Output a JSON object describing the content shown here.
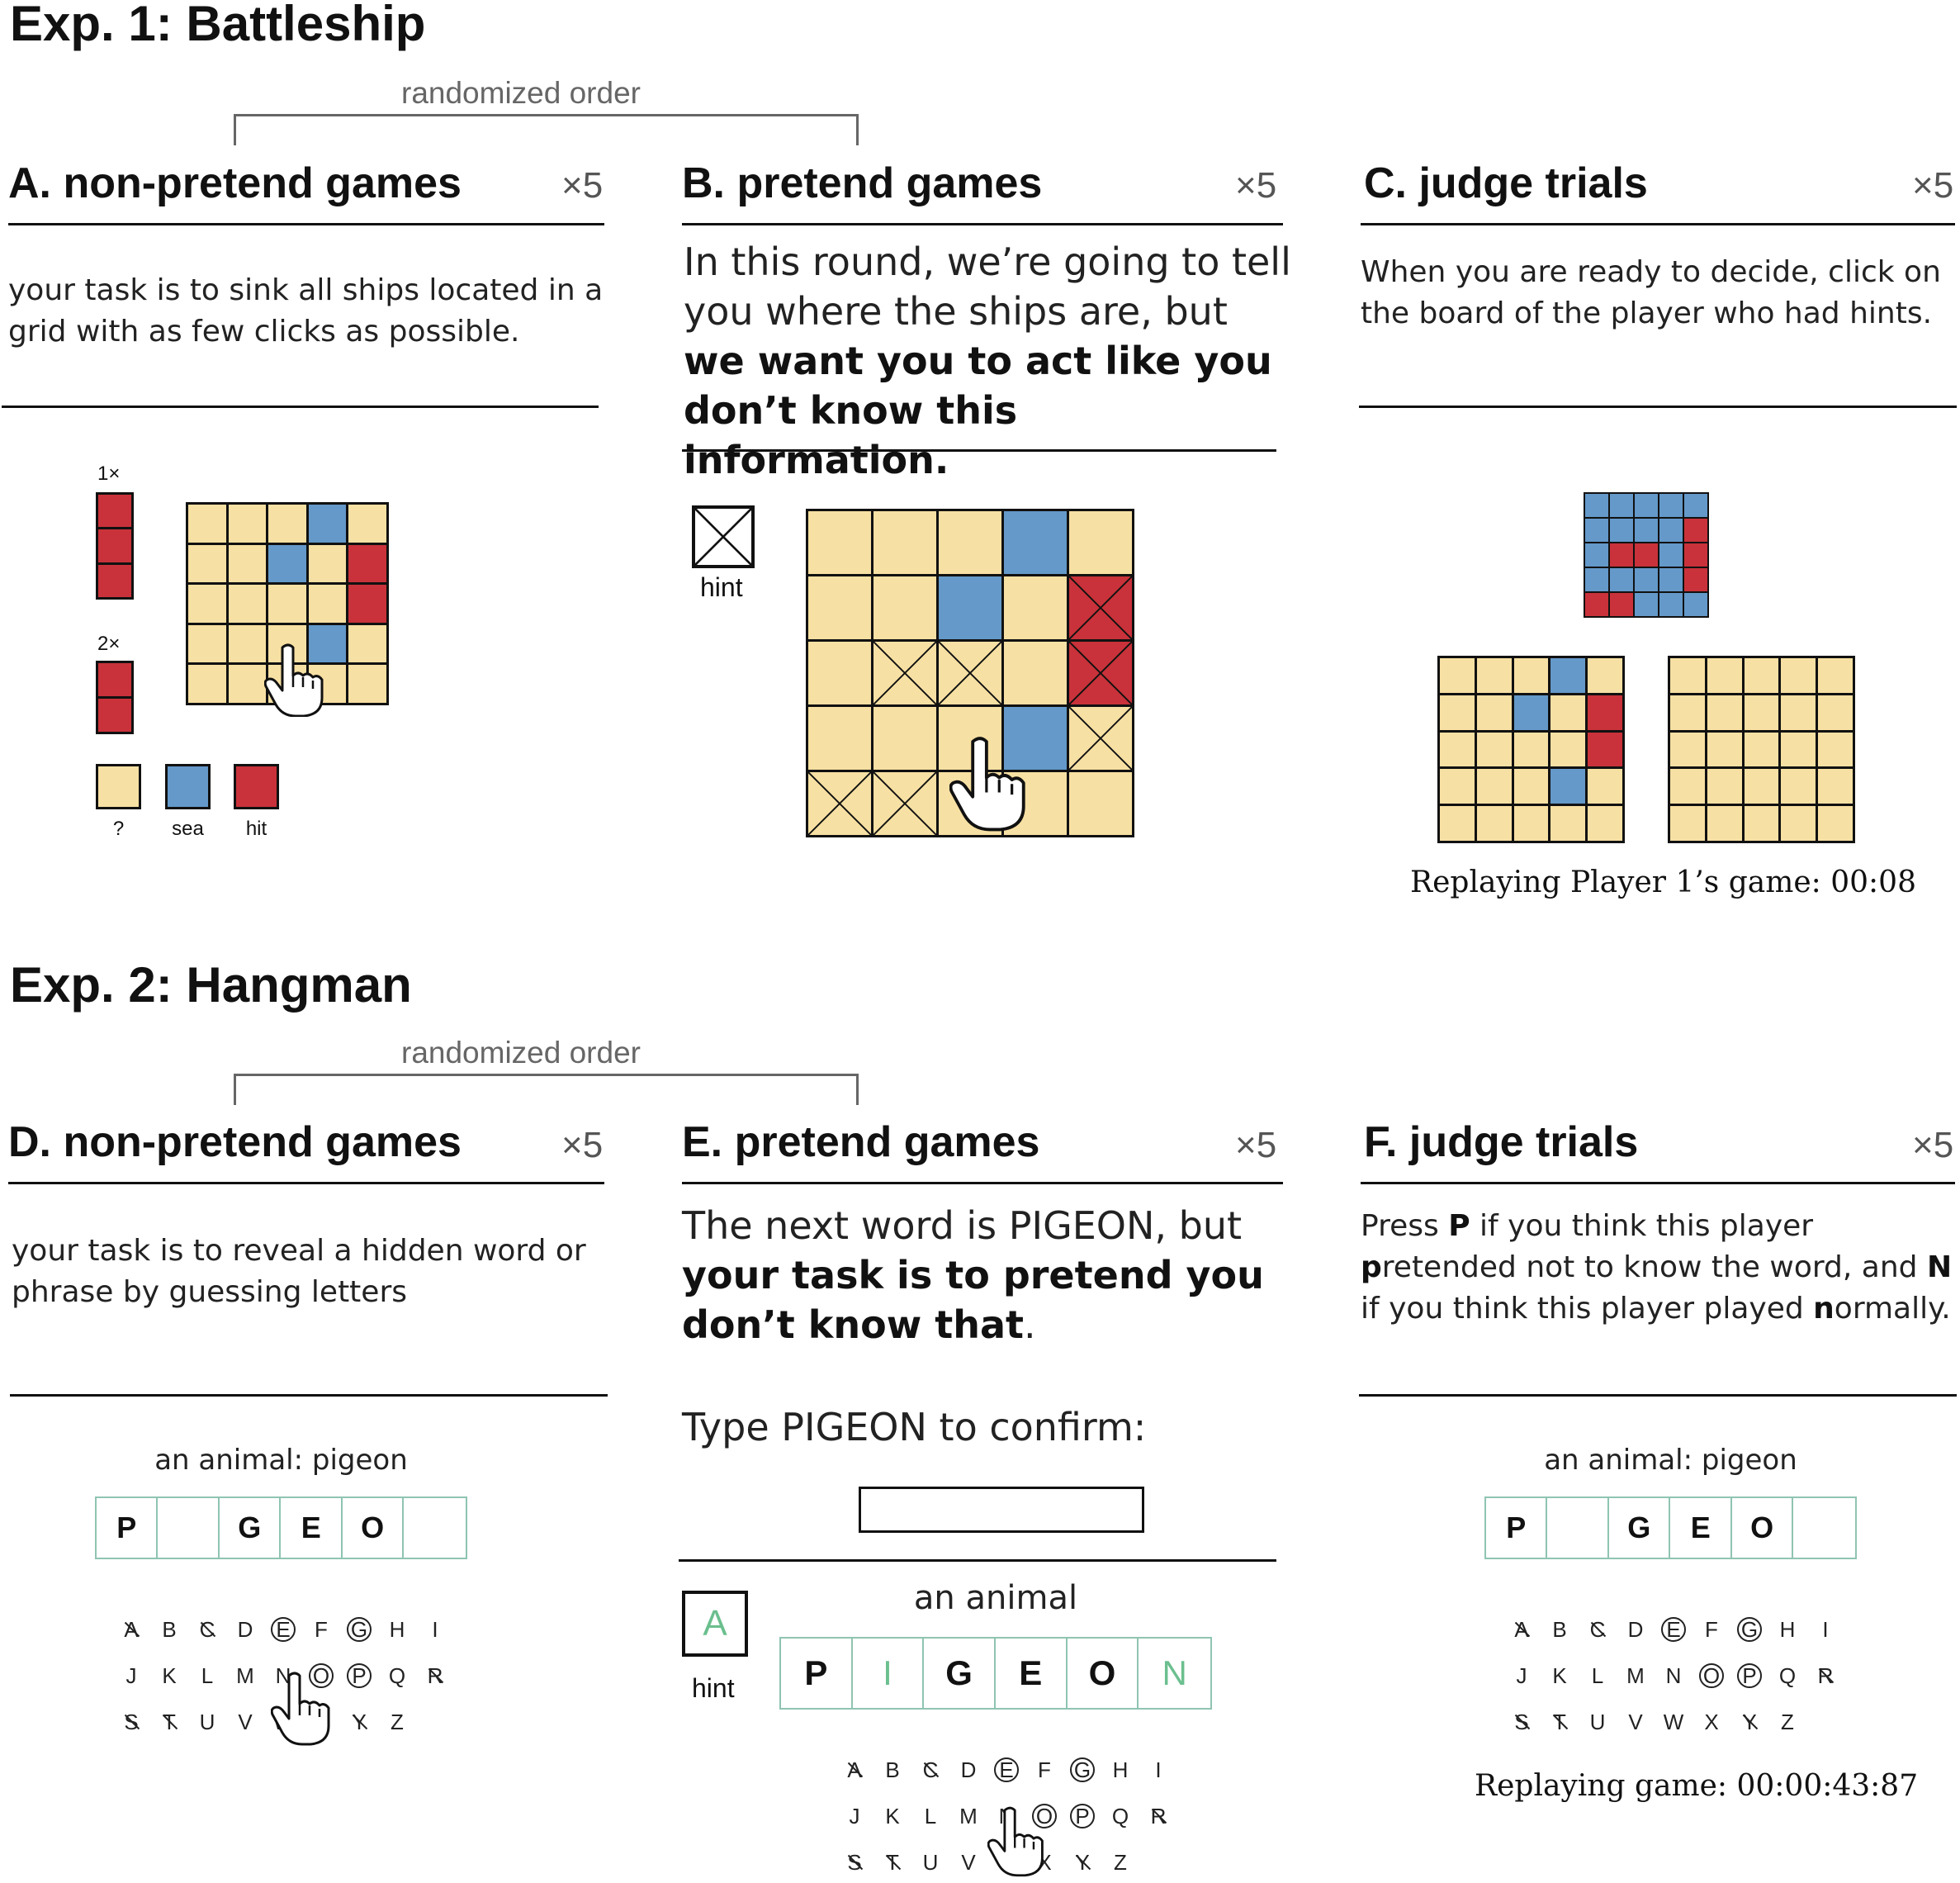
{
  "exp1": {
    "title": "Exp. 1: Battleship",
    "randomized": "randomized order",
    "a": {
      "title": "A.  non-pretend games",
      "times": "×5",
      "text": "your task is to sink all ships located in a grid with as few clicks as possible.",
      "ship1_label": "1×",
      "ship2_label": "2×",
      "legend": {
        "unknown": "?",
        "sea": "sea",
        "hit": "hit"
      },
      "grid": [
        [
          "u",
          "u",
          "u",
          "s",
          "u"
        ],
        [
          "u",
          "u",
          "s",
          "u",
          "h"
        ],
        [
          "u",
          "u",
          "u",
          "u",
          "h"
        ],
        [
          "u",
          "u",
          "u",
          "s",
          "u"
        ],
        [
          "u",
          "u",
          "u",
          "u",
          "u"
        ]
      ]
    },
    "b": {
      "title": "B. pretend games",
      "times": "×5",
      "text_plain": "In this round, we’re going to tell you where the ships are, but ",
      "text_bold": "we want you to act like you don’t know this information.",
      "hint_label": "hint",
      "grid": [
        [
          "u",
          "u",
          "u",
          "s",
          "u"
        ],
        [
          "u",
          "u",
          "s",
          "u",
          "hx"
        ],
        [
          "u",
          "ux",
          "ux",
          "u",
          "hx"
        ],
        [
          "u",
          "u",
          "u",
          "s",
          "ux"
        ],
        [
          "ux",
          "ux",
          "u",
          "u",
          "u"
        ]
      ]
    },
    "c": {
      "title": "C. judge trials",
      "times": "×5",
      "text": "When you are ready to decide, click on the board of the player who had hints.",
      "replay": "Replaying Player 1’s game: 00:08",
      "small_grid": [
        [
          "s",
          "s",
          "s",
          "s",
          "s"
        ],
        [
          "s",
          "s",
          "s",
          "s",
          "h"
        ],
        [
          "s",
          "h",
          "h",
          "s",
          "h"
        ],
        [
          "s",
          "s",
          "s",
          "s",
          "h"
        ],
        [
          "h",
          "h",
          "s",
          "s",
          "s"
        ]
      ],
      "board1": [
        [
          "u",
          "u",
          "u",
          "s",
          "u"
        ],
        [
          "u",
          "u",
          "s",
          "u",
          "h"
        ],
        [
          "u",
          "u",
          "u",
          "u",
          "h"
        ],
        [
          "u",
          "u",
          "u",
          "s",
          "u"
        ],
        [
          "u",
          "u",
          "u",
          "u",
          "u"
        ]
      ],
      "board2": [
        [
          "u",
          "u",
          "u",
          "u",
          "u"
        ],
        [
          "u",
          "u",
          "u",
          "u",
          "u"
        ],
        [
          "u",
          "u",
          "u",
          "u",
          "u"
        ],
        [
          "u",
          "u",
          "u",
          "u",
          "u"
        ],
        [
          "u",
          "u",
          "u",
          "u",
          "u"
        ]
      ]
    }
  },
  "exp2": {
    "title": "Exp. 2: Hangman",
    "randomized": "randomized order",
    "d": {
      "title": "D. non-pretend games",
      "times": "×5",
      "text": "your task is to reveal a hidden word or phrase by guessing letters",
      "category": "an animal: pigeon",
      "word": [
        "P",
        "",
        "G",
        "E",
        "O",
        ""
      ]
    },
    "e": {
      "title": "E. pretend games",
      "times": "×5",
      "text_plain": "The next word is PIGEON, but ",
      "text_bold": "your task is to pretend you don’t know that",
      "text_end": ".",
      "confirm": "Type PIGEON to confirm:",
      "hint_letter": "A",
      "hint_label": "hint",
      "category": "an animal",
      "word": [
        "P",
        "I",
        "G",
        "E",
        "O",
        "N"
      ]
    },
    "f": {
      "title": "F. judge trials",
      "times": "×5",
      "text_p1": "Press ",
      "text_pkey": "P",
      "text_p2": " if you think this player ",
      "text_pfirst": "p",
      "text_p3": "retended not to know the word, and ",
      "text_nkey": "N",
      "text_p4": " if you think this player played ",
      "text_nfirst": "n",
      "text_p5": "ormally.",
      "category": "an animal: pigeon",
      "word": [
        "P",
        "",
        "G",
        "E",
        "O",
        ""
      ],
      "replay": "Replaying game: 00:00:43:87"
    },
    "keyboard": {
      "row1": [
        "A",
        "B",
        "C",
        "D",
        "E",
        "F",
        "G",
        "H",
        "I"
      ],
      "row2": [
        "J",
        "K",
        "L",
        "M",
        "N",
        "O",
        "P",
        "Q",
        "R"
      ],
      "row3": [
        "S",
        "T",
        "U",
        "V",
        "W",
        "X",
        "Y",
        "Z"
      ],
      "circled": [
        "E",
        "G",
        "O",
        "P"
      ],
      "struck": [
        "A",
        "C",
        "R",
        "S",
        "T",
        "Y"
      ]
    }
  }
}
